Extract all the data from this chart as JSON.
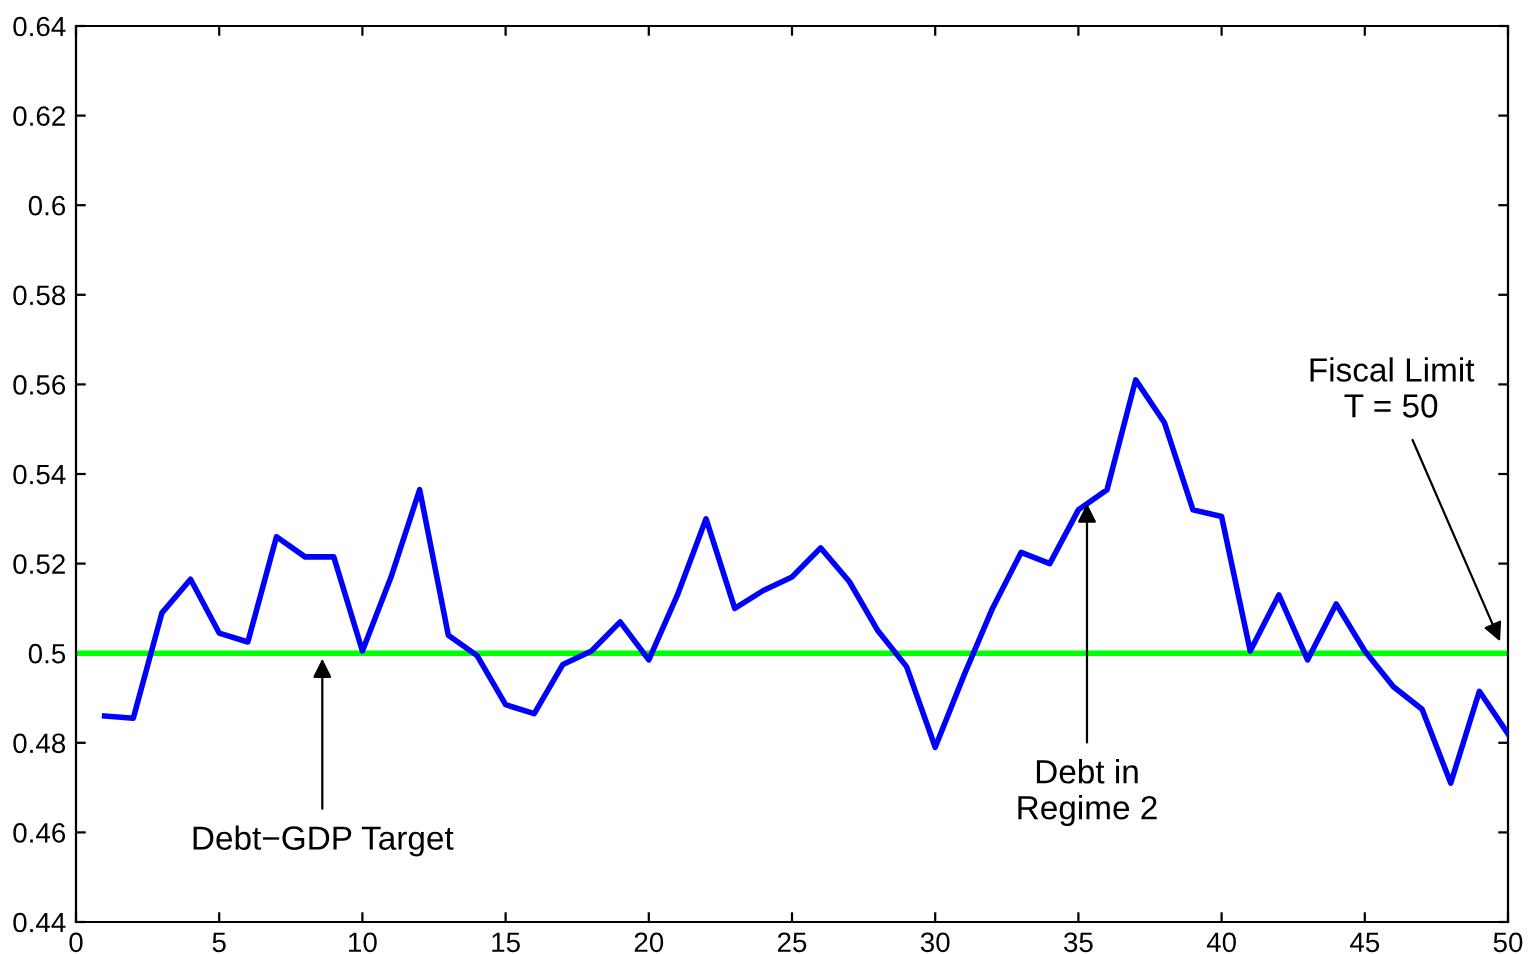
{
  "chart_data": {
    "type": "line",
    "x": [
      1,
      2,
      3,
      4,
      5,
      6,
      7,
      8,
      9,
      10,
      11,
      12,
      13,
      14,
      15,
      16,
      17,
      18,
      19,
      20,
      21,
      22,
      23,
      24,
      25,
      26,
      27,
      28,
      29,
      30,
      31,
      32,
      33,
      34,
      35,
      36,
      37,
      38,
      39,
      40,
      41,
      42,
      43,
      44,
      45,
      46,
      47,
      48,
      49,
      50
    ],
    "series": [
      {
        "color": "#0000ff",
        "values": [
          0.486,
          0.4855,
          0.509,
          0.5165,
          0.5045,
          0.5025,
          0.526,
          0.5215,
          0.5215,
          0.5005,
          0.517,
          0.5365,
          0.504,
          0.4995,
          0.4885,
          0.4865,
          0.4975,
          0.5005,
          0.507,
          0.4985,
          0.513,
          0.53,
          0.51,
          0.514,
          0.517,
          0.5235,
          0.516,
          0.505,
          0.497,
          0.479,
          0.495,
          0.51,
          0.5225,
          0.52,
          0.532,
          0.5365,
          0.561,
          0.5515,
          0.532,
          0.5305,
          0.5005,
          0.513,
          0.4985,
          0.511,
          0.5005,
          0.4925,
          0.4875,
          0.471,
          0.4915,
          0.482
        ]
      }
    ],
    "xlim": [
      0,
      50
    ],
    "xticks": [
      0,
      5,
      10,
      15,
      20,
      25,
      30,
      35,
      40,
      45,
      50
    ],
    "ylim": [
      0.44,
      0.64
    ],
    "yticks": [
      {
        "value": 0.44,
        "label": "0.44"
      },
      {
        "value": 0.46,
        "label": "0.46"
      },
      {
        "value": 0.48,
        "label": "0.48"
      },
      {
        "value": 0.5,
        "label": "0.5"
      },
      {
        "value": 0.52,
        "label": "0.52"
      },
      {
        "value": 0.54,
        "label": "0.54"
      },
      {
        "value": 0.56,
        "label": "0.56"
      },
      {
        "value": 0.58,
        "label": "0.58"
      },
      {
        "value": 0.6,
        "label": "0.6"
      },
      {
        "value": 0.62,
        "label": "0.62"
      },
      {
        "value": 0.64,
        "label": "0.64"
      }
    ],
    "ref_lines": [
      {
        "axis": "y",
        "value": 0.5,
        "color": "#00ff00"
      }
    ],
    "annotations": [
      {
        "text": "Debt−GDP Target",
        "x": 8.6,
        "y": 0.5
      },
      {
        "text": "Debt in\nRegime 2",
        "x": 35.3,
        "y": 0.5334
      },
      {
        "text": "Fiscal Limit\nT = 50",
        "x": 49.8,
        "y": 0.5015
      }
    ],
    "grid": false,
    "marker": "none",
    "line_style": "solid",
    "legend": false
  }
}
